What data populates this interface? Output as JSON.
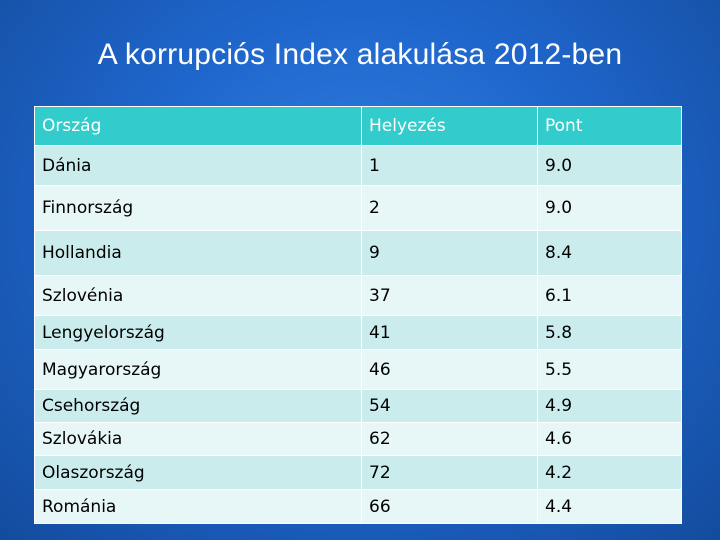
{
  "slide": {
    "title": "A korrupciós Index alakulása 2012-ben"
  },
  "table": {
    "headers": [
      "Ország",
      "Helyezés",
      "Pont"
    ],
    "rows": [
      [
        "Dánia",
        "1",
        "9.0"
      ],
      [
        "Finnország",
        "2",
        "9.0"
      ],
      [
        "Hollandia",
        "9",
        "8.4"
      ],
      [
        "Szlovénia",
        "37",
        "6.1"
      ],
      [
        "Lengyelország",
        "41",
        "5.8"
      ],
      [
        "Magyarország",
        "46",
        "5.5"
      ],
      [
        "Csehország",
        "54",
        "4.9"
      ],
      [
        "Szlovákia",
        "62",
        "4.6"
      ],
      [
        "Olaszország",
        "72",
        "4.2"
      ],
      [
        "Románia",
        "66",
        "4.4"
      ]
    ]
  },
  "colors": {
    "header_bg": "#33cccc",
    "row_odd_bg": "#cbecec",
    "row_even_bg": "#e7f6f6",
    "slide_bg": "#1f66cc"
  }
}
